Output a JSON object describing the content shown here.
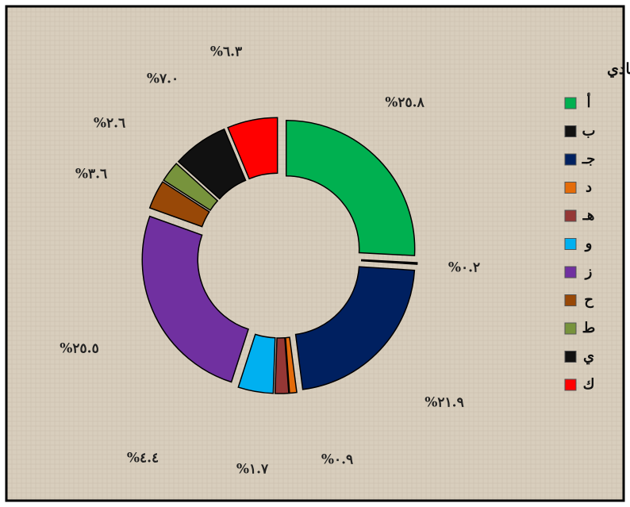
{
  "chart_data": {
    "type": "donut",
    "legend_title": "أقسام النشاط الاقتصادي",
    "categories": [
      "أ",
      "ب",
      "جـ",
      "د",
      "هـ",
      "و",
      "ز",
      "ح",
      "ط",
      "ي",
      "ك"
    ],
    "values": [
      25.8,
      0.2,
      21.9,
      0.9,
      1.7,
      4.4,
      25.5,
      3.6,
      2.6,
      7.0,
      6.3
    ],
    "value_labels": [
      "%٢٥.٨",
      "%٠.٢",
      "%٢١.٩",
      "%٠.٩",
      "%١.٧",
      "%٤.٤",
      "%٢٥.٥",
      "%٣.٦",
      "%٢.٦",
      "%٧.٠",
      "%٦.٣"
    ],
    "colors": [
      "#00b050",
      "#111111",
      "#002060",
      "#e46c0a",
      "#953735",
      "#00b0f0",
      "#7030a0",
      "#984807",
      "#77933c",
      "#111111",
      "#ff0000"
    ],
    "legend": "right"
  }
}
